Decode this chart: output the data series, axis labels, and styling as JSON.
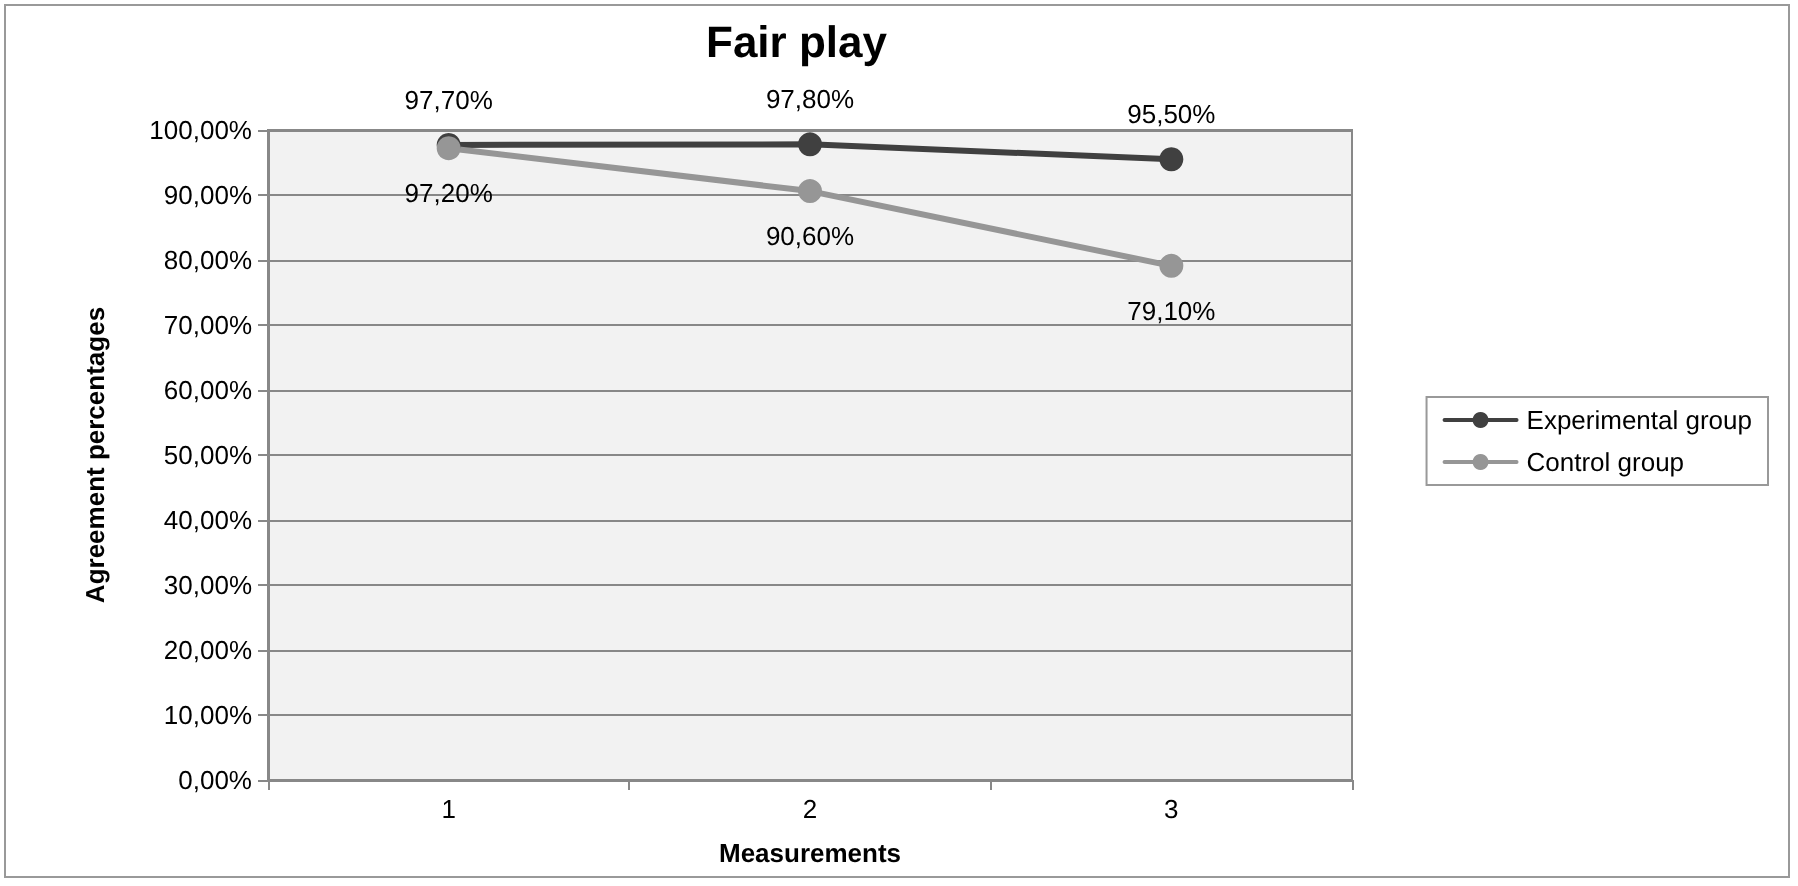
{
  "chart_data": {
    "type": "line",
    "title": "Fair play",
    "xlabel": "Measurements",
    "ylabel": "Agreement percentages",
    "categories": [
      "1",
      "2",
      "3"
    ],
    "series": [
      {
        "name": "Experimental group",
        "color": "#404040",
        "values": [
          97.7,
          97.8,
          95.5
        ],
        "value_labels": [
          "97,70%",
          "97,80%",
          "95,50%"
        ]
      },
      {
        "name": "Control group",
        "color": "#969696",
        "values": [
          97.2,
          90.6,
          79.1
        ],
        "value_labels": [
          "97,20%",
          "90,60%",
          "79,10%"
        ]
      }
    ],
    "ylim": [
      0,
      100
    ],
    "yticks": [
      {
        "value": 0,
        "label": "0,00%"
      },
      {
        "value": 10,
        "label": "10,00%"
      },
      {
        "value": 20,
        "label": "20,00%"
      },
      {
        "value": 30,
        "label": "30,00%"
      },
      {
        "value": 40,
        "label": "40,00%"
      },
      {
        "value": 50,
        "label": "50,00%"
      },
      {
        "value": 60,
        "label": "60,00%"
      },
      {
        "value": 70,
        "label": "70,00%"
      },
      {
        "value": 80,
        "label": "80,00%"
      },
      {
        "value": 90,
        "label": "90,00%"
      },
      {
        "value": 100,
        "label": "100,00%"
      }
    ],
    "grid": "y",
    "legend": "right",
    "marker": "circle",
    "line_style": "solid"
  }
}
